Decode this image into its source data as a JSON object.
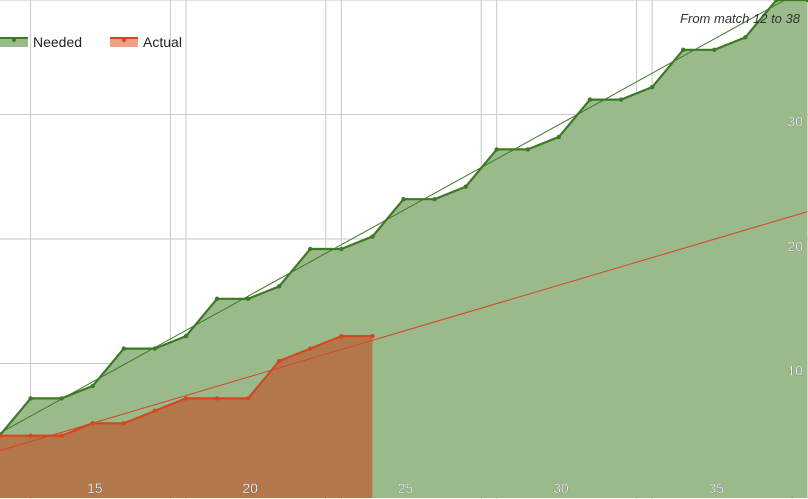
{
  "chart_data": {
    "type": "area",
    "subtitle": "From match 12 to 38",
    "xlim": [
      12,
      38
    ],
    "ylim": [
      0,
      40
    ],
    "x_ticks": [
      15,
      20,
      25,
      30,
      35
    ],
    "y_ticks": [
      10,
      20,
      30
    ],
    "grid": true,
    "legend_placement": "top-left",
    "series": [
      {
        "name": "Needed",
        "color": "#3d7a24",
        "fill": "#9bba8c",
        "x": [
          12,
          13,
          14,
          15,
          16,
          17,
          18,
          19,
          20,
          21,
          22,
          23,
          24,
          25,
          26,
          27,
          28,
          29,
          30,
          31,
          32,
          33,
          34,
          35,
          36,
          37,
          38
        ],
        "values": [
          5,
          8,
          8,
          9,
          12,
          12,
          13,
          16,
          16,
          17,
          20,
          20,
          21,
          24,
          24,
          25,
          28,
          28,
          29,
          32,
          32,
          33,
          36,
          36,
          37,
          40,
          40
        ]
      },
      {
        "name": "Actual",
        "color": "#d8451f",
        "fill": "#b37449",
        "x": [
          12,
          13,
          14,
          15,
          16,
          17,
          18,
          19,
          20,
          21,
          22,
          23,
          24
        ],
        "values": [
          5,
          5,
          5,
          6,
          6,
          7,
          8,
          8,
          8,
          11,
          12,
          13,
          13
        ]
      }
    ],
    "trendlines": [
      {
        "series": "Needed",
        "color": "#3d7a24",
        "x": [
          12,
          38
        ],
        "values": [
          5.2,
          41
        ]
      },
      {
        "series": "Actual",
        "color": "#d8451f",
        "x": [
          12,
          38
        ],
        "values": [
          3.8,
          23
        ]
      }
    ]
  }
}
